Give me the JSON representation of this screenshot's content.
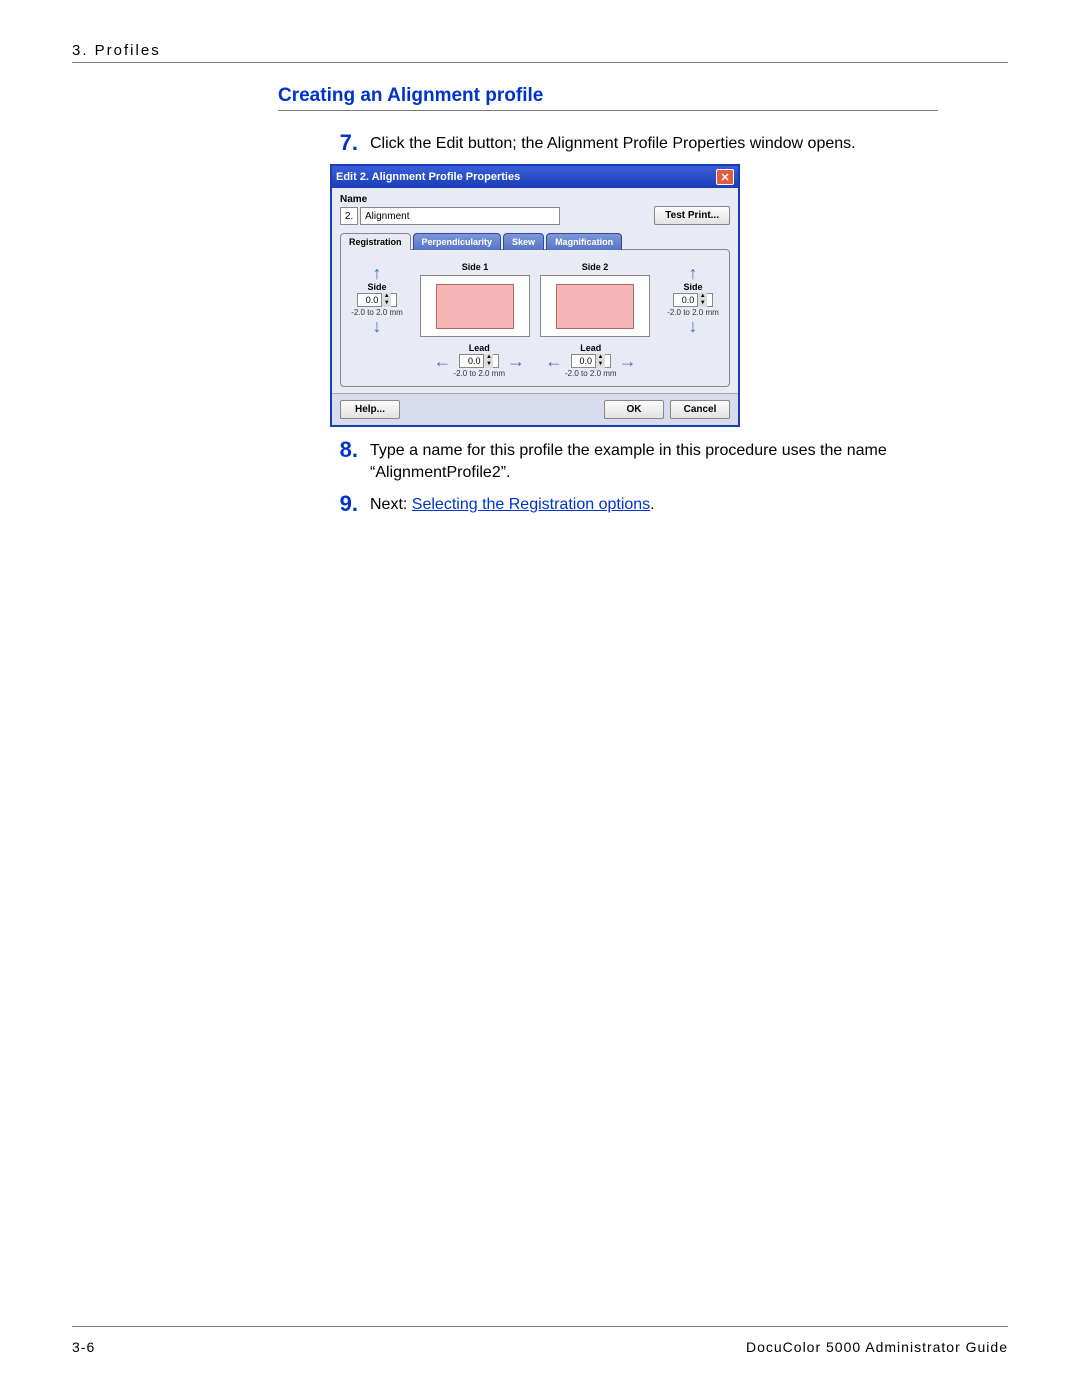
{
  "header": {
    "breadcrumb": "3. Profiles"
  },
  "section": {
    "title": "Creating an Alignment profile"
  },
  "steps": [
    {
      "num": "7.",
      "text": "Click the Edit button; the Alignment Profile Properties window opens."
    },
    {
      "num": "8.",
      "text": "Type a name for this profile the example in this procedure uses the name “AlignmentProfile2”."
    },
    {
      "num": "9.",
      "prefix": "Next: ",
      "link": "Selecting the Registration options",
      "suffix": "."
    }
  ],
  "dialog": {
    "title": "Edit 2. Alignment Profile Properties",
    "name_label": "Name",
    "name_number": "2.",
    "name_value": "Alignment",
    "test_print": "Test Print...",
    "tabs": [
      "Registration",
      "Perpendicularity",
      "Skew",
      "Magnification"
    ],
    "side1": "Side 1",
    "side2": "Side 2",
    "side_label": "Side",
    "lead_label": "Lead",
    "value": "0.0",
    "range": "-2.0 to 2.0 mm",
    "help": "Help...",
    "ok": "OK",
    "cancel": "Cancel",
    "colors": {
      "titlebar_bg": "#1a3db5",
      "close_bg": "#e25c3f",
      "pink": "#f4b5b5",
      "arrow": "#4a6cc9"
    }
  },
  "footer": {
    "page": "3-6",
    "doc": "DocuColor 5000 Administrator Guide"
  }
}
